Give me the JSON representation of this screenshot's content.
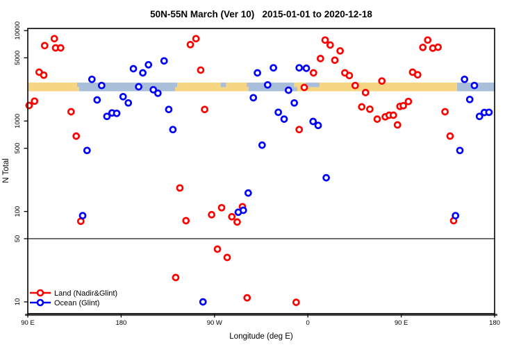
{
  "title": "50N-55N March (Ver 10)   2015-01-01 to 2020-12-18",
  "chart_data": {
    "type": "scatter",
    "title": "50N-55N March (Ver 10)   2015-01-01 to 2020-12-18",
    "xlabel": "Longitude (deg E)",
    "ylabel": "N Total",
    "x_axis": {
      "note": "longitude axis wraps eastward from 90E around the globe to 180 (450 deg span); axis coordinate = deg east of Greenwich, +360 after wrap",
      "range": [
        90,
        540
      ],
      "ticks": [
        90,
        180,
        270,
        360,
        450,
        540
      ],
      "tick_labels": [
        "90 E",
        "180",
        "90 W",
        "0",
        "90 E",
        "180"
      ]
    },
    "y_axis": {
      "scale": "log10",
      "range": [
        7.4,
        10560
      ],
      "ticks": [
        10,
        50,
        100,
        500,
        1000,
        5000,
        10000
      ],
      "tick_labels": [
        "10",
        "50",
        "100",
        "500",
        "1000",
        "5000",
        "10000"
      ]
    },
    "reference_line_y": 50,
    "grid": false,
    "legend_position": "bottom-left",
    "map_band": {
      "description": "land/ocean strip at N ~ 2150-2650 showing surface type along the latitude band",
      "n_top": 2650,
      "n_bottom": 2150,
      "land_color": "#F6D583",
      "ocean_color": "#A9BFD9",
      "segments": [
        {
          "surface": "land",
          "from": 90,
          "to": 137.5
        },
        {
          "surface": "ocean",
          "from": 137.5,
          "to": 232
        },
        {
          "surface": "land",
          "from": 232,
          "to": 301
        },
        {
          "surface": "ocean",
          "from": 301,
          "to": 349.8
        },
        {
          "surface": "land",
          "from": 349.8,
          "to": 503.8
        },
        {
          "surface": "ocean",
          "from": 503.8,
          "to": 540
        }
      ],
      "patches": [
        {
          "surface": "ocean",
          "from": 276,
          "to": 281,
          "half": "top"
        },
        {
          "surface": "land",
          "from": 346.5,
          "to": 350.5,
          "half": "top"
        },
        {
          "surface": "ocean",
          "from": 358,
          "to": 371,
          "half": "top"
        },
        {
          "surface": "land",
          "from": 137.5,
          "to": 139.5,
          "half": "bottom"
        },
        {
          "surface": "ocean",
          "from": 232,
          "to": 234,
          "half": "top"
        },
        {
          "surface": "land",
          "from": 301,
          "to": 303,
          "half": "bottom"
        }
      ]
    },
    "series": [
      {
        "name": "Land (Nadir&Glint)",
        "color": "#FF0000",
        "points": [
          [
            115.6,
            8150
          ],
          [
            106.3,
            6830
          ],
          [
            116.8,
            6440
          ],
          [
            121.7,
            6440
          ],
          [
            100.9,
            3470
          ],
          [
            105.4,
            3215
          ],
          [
            91.3,
            1486
          ],
          [
            96.5,
            1660
          ],
          [
            131.7,
            1268
          ],
          [
            136.7,
            682
          ],
          [
            141.1,
            78
          ],
          [
            236.6,
            182
          ],
          [
            232.6,
            18.6
          ],
          [
            246.7,
            7000
          ],
          [
            252.1,
            8150
          ],
          [
            256.7,
            3660
          ],
          [
            260.5,
            1343
          ],
          [
            242.5,
            79
          ],
          [
            267.2,
            92
          ],
          [
            272.8,
            38.3
          ],
          [
            276.8,
            110
          ],
          [
            282.2,
            31
          ],
          [
            286.7,
            87.5
          ],
          [
            291.8,
            76.4
          ],
          [
            296.9,
            113
          ],
          [
            301.4,
            11.1
          ],
          [
            348.7,
            9.9
          ],
          [
            351.6,
            805
          ],
          [
            356.5,
            2350
          ],
          [
            365.4,
            3410
          ],
          [
            372.1,
            4910
          ],
          [
            376.6,
            7870
          ],
          [
            381.5,
            6920
          ],
          [
            386.0,
            4710
          ],
          [
            391.1,
            5970
          ],
          [
            395.6,
            3410
          ],
          [
            400.0,
            3180
          ],
          [
            405.6,
            2470
          ],
          [
            415.6,
            2065
          ],
          [
            431.3,
            2770
          ],
          [
            411.9,
            1435
          ],
          [
            419.7,
            1352
          ],
          [
            426.8,
            1050
          ],
          [
            434.6,
            1114
          ],
          [
            438.4,
            1160
          ],
          [
            442.4,
            1160
          ],
          [
            446.4,
            905
          ],
          [
            448.7,
            1452
          ],
          [
            452.0,
            1478
          ],
          [
            456.9,
            1645
          ],
          [
            460.9,
            3470
          ],
          [
            465.8,
            3250
          ],
          [
            470.8,
            6520
          ],
          [
            475.5,
            7870
          ],
          [
            480.4,
            6400
          ],
          [
            485.5,
            6560
          ],
          [
            492.2,
            1268
          ],
          [
            497.1,
            682
          ],
          [
            500.5,
            79
          ]
        ]
      },
      {
        "name": "Ocean (Glint)",
        "color": "#0000FF",
        "points": [
          [
            151.8,
            2890
          ],
          [
            161.2,
            2470
          ],
          [
            156.8,
            1710
          ],
          [
            166.3,
            1125
          ],
          [
            171.2,
            1230
          ],
          [
            175.7,
            1216
          ],
          [
            147.1,
            473
          ],
          [
            142.9,
            90
          ],
          [
            181.9,
            1858
          ],
          [
            186.9,
            1585
          ],
          [
            191.8,
            3790
          ],
          [
            196.9,
            2394
          ],
          [
            200.9,
            3410
          ],
          [
            206.3,
            4190
          ],
          [
            211.0,
            2220
          ],
          [
            215.4,
            2030
          ],
          [
            221.4,
            4630
          ],
          [
            225.9,
            1343
          ],
          [
            229.9,
            805
          ],
          [
            258.9,
            10
          ],
          [
            292.9,
            98
          ],
          [
            297.8,
            103
          ],
          [
            302.5,
            160
          ],
          [
            307.4,
            1812
          ],
          [
            311.4,
            3410
          ],
          [
            315.9,
            542
          ],
          [
            321.2,
            2510
          ],
          [
            326.8,
            3880
          ],
          [
            331.5,
            1250
          ],
          [
            337.1,
            1050
          ],
          [
            341.3,
            2190
          ],
          [
            346.9,
            1585
          ],
          [
            351.6,
            3880
          ],
          [
            358.5,
            3830
          ],
          [
            365.0,
            990
          ],
          [
            369.9,
            895
          ],
          [
            377.7,
            236
          ],
          [
            502.3,
            90
          ],
          [
            506.5,
            473
          ],
          [
            511.0,
            2890
          ],
          [
            516.0,
            1733
          ],
          [
            520.5,
            2470
          ],
          [
            525.4,
            1125
          ],
          [
            530.1,
            1242
          ],
          [
            534.6,
            1250
          ]
        ]
      }
    ]
  }
}
